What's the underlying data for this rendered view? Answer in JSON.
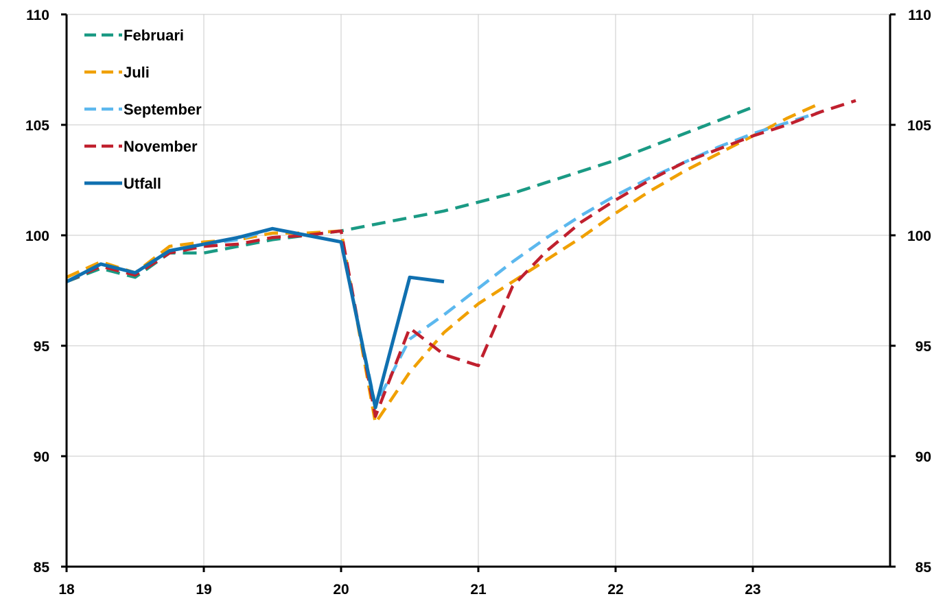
{
  "chart_data": {
    "type": "line",
    "title": "",
    "xlabel": "",
    "ylabel": "",
    "xlim": [
      18,
      24
    ],
    "ylim": [
      85,
      110
    ],
    "x_ticks": [
      {
        "value": 18,
        "label": "18"
      },
      {
        "value": 19,
        "label": "19"
      },
      {
        "value": 20,
        "label": "20"
      },
      {
        "value": 21,
        "label": "21"
      },
      {
        "value": 22,
        "label": "22"
      },
      {
        "value": 23,
        "label": "23"
      }
    ],
    "y_ticks": [
      {
        "value": 85,
        "label": "85"
      },
      {
        "value": 90,
        "label": "90"
      },
      {
        "value": 95,
        "label": "95"
      },
      {
        "value": 100,
        "label": "100"
      },
      {
        "value": 105,
        "label": "105"
      },
      {
        "value": 110,
        "label": "110"
      }
    ],
    "grid": true,
    "legend_position": "top-left",
    "series": [
      {
        "name": "Februari",
        "color": "#1a9a84",
        "style": "dashed",
        "x": [
          18,
          18.25,
          18.5,
          18.75,
          19,
          19.25,
          19.5,
          19.75,
          20,
          20.25,
          20.5,
          20.75,
          21,
          21.25,
          21.5,
          21.75,
          22,
          22.25,
          22.5,
          22.75,
          23
        ],
        "y": [
          97.9,
          98.5,
          98.1,
          99.2,
          99.2,
          99.5,
          99.8,
          100.0,
          100.2,
          100.5,
          100.8,
          101.1,
          101.5,
          101.9,
          102.4,
          102.9,
          103.4,
          104.0,
          104.6,
          105.2,
          105.8
        ]
      },
      {
        "name": "Juli",
        "color": "#f0a000",
        "style": "dashed",
        "x": [
          18,
          18.25,
          18.5,
          18.75,
          19,
          19.25,
          19.5,
          19.75,
          20,
          20.25,
          20.5,
          20.75,
          21,
          21.25,
          21.5,
          21.75,
          22,
          22.25,
          22.5,
          22.75,
          23,
          23.25,
          23.5
        ],
        "y": [
          98.1,
          98.8,
          98.3,
          99.5,
          99.7,
          99.8,
          100.1,
          100.1,
          100.2,
          91.5,
          93.8,
          95.6,
          96.9,
          97.9,
          98.9,
          99.9,
          101.0,
          102.0,
          102.9,
          103.7,
          104.5,
          105.3,
          106.0
        ]
      },
      {
        "name": "September",
        "color": "#5cb8ee",
        "style": "dashed",
        "x": [
          18,
          18.25,
          18.5,
          18.75,
          19,
          19.25,
          19.5,
          19.75,
          20,
          20.25,
          20.5,
          20.75,
          21,
          21.25,
          21.5,
          21.75,
          22,
          22.25,
          22.5,
          22.75,
          23,
          23.25,
          23.5
        ],
        "y": [
          97.9,
          98.7,
          98.3,
          99.3,
          99.6,
          99.8,
          100.3,
          100.0,
          99.7,
          92.3,
          95.3,
          96.4,
          97.6,
          98.8,
          99.9,
          100.9,
          101.8,
          102.6,
          103.3,
          104.0,
          104.6,
          105.1,
          105.6
        ]
      },
      {
        "name": "November",
        "color": "#c0202e",
        "style": "dashed",
        "x": [
          18,
          18.25,
          18.5,
          18.75,
          19,
          19.25,
          19.5,
          19.75,
          20,
          20.25,
          20.5,
          20.75,
          21,
          21.25,
          21.5,
          21.75,
          22,
          22.25,
          22.5,
          22.75,
          23,
          23.25,
          23.5,
          23.75
        ],
        "y": [
          97.9,
          98.6,
          98.2,
          99.2,
          99.5,
          99.6,
          99.9,
          100.0,
          100.2,
          91.8,
          95.8,
          94.6,
          94.1,
          97.7,
          99.3,
          100.6,
          101.6,
          102.5,
          103.3,
          103.9,
          104.5,
          105.0,
          105.6,
          106.1
        ]
      },
      {
        "name": "Utfall",
        "color": "#1070b0",
        "style": "solid",
        "x": [
          18,
          18.25,
          18.5,
          18.75,
          19,
          19.25,
          19.5,
          19.75,
          20,
          20.25,
          20.5,
          20.75
        ],
        "y": [
          97.9,
          98.7,
          98.3,
          99.3,
          99.6,
          99.9,
          100.3,
          100.0,
          99.7,
          92.2,
          98.1,
          97.9
        ]
      }
    ]
  }
}
